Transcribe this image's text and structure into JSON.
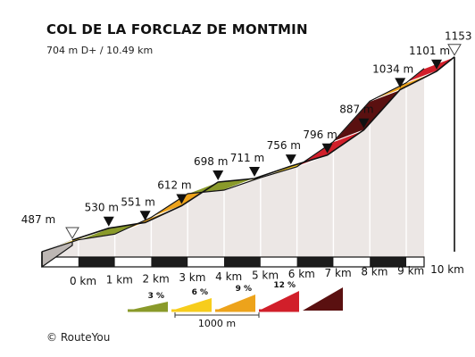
{
  "header": {
    "title": "COL DE LA FORCLAZ DE MONTMIN",
    "subtitle": "704 m D+ / 10.49 km"
  },
  "footer": {
    "copyright": "© RouteYou"
  },
  "chart_data": {
    "type": "area",
    "title": "COL DE LA FORCLAZ DE MONTMIN",
    "subtitle": "704 m D+ / 10.49 km",
    "xunit": "km",
    "yunit": "m",
    "km_ticks": [
      "0 km",
      "1 km",
      "2 km",
      "3 km",
      "4 km",
      "5 km",
      "6 km",
      "7 km",
      "8 km",
      "9 km",
      "10 km"
    ],
    "points": [
      {
        "km": 0,
        "elevation": 487,
        "label": "487 m",
        "marker": "start"
      },
      {
        "km": 1,
        "elevation": 530,
        "label": "530 m",
        "marker": "km"
      },
      {
        "km": 2,
        "elevation": 551,
        "label": "551 m",
        "marker": "km"
      },
      {
        "km": 3,
        "elevation": 612,
        "label": "612 m",
        "marker": "km"
      },
      {
        "km": 4,
        "elevation": 698,
        "label": "698 m",
        "marker": "km"
      },
      {
        "km": 5,
        "elevation": 711,
        "label": "711 m",
        "marker": "km"
      },
      {
        "km": 6,
        "elevation": 756,
        "label": "756 m",
        "marker": "km"
      },
      {
        "km": 7,
        "elevation": 796,
        "label": "796 m",
        "marker": "km"
      },
      {
        "km": 8,
        "elevation": 887,
        "label": "887 m",
        "marker": "km"
      },
      {
        "km": 9,
        "elevation": 1034,
        "label": "1034 m",
        "marker": "km"
      },
      {
        "km": 10,
        "elevation": 1101,
        "label": "1101 m",
        "marker": "km"
      },
      {
        "km": 10.49,
        "elevation": 1153,
        "label": "1153 m",
        "marker": "end"
      }
    ],
    "legend": {
      "items": [
        {
          "label": "3 %",
          "color": "#8a9a2a"
        },
        {
          "label": "6 %",
          "color": "#f7cd1c"
        },
        {
          "label": "9 %",
          "color": "#eda31b"
        },
        {
          "label": "12 %",
          "color": "#d11f2a"
        },
        {
          "label": "",
          "color": "#5a1010"
        }
      ],
      "scale_label": "1000 m"
    },
    "colors": {
      "wall": "#ece7e5",
      "wall_dark": "#c4bebb",
      "edge": "#111111"
    }
  }
}
